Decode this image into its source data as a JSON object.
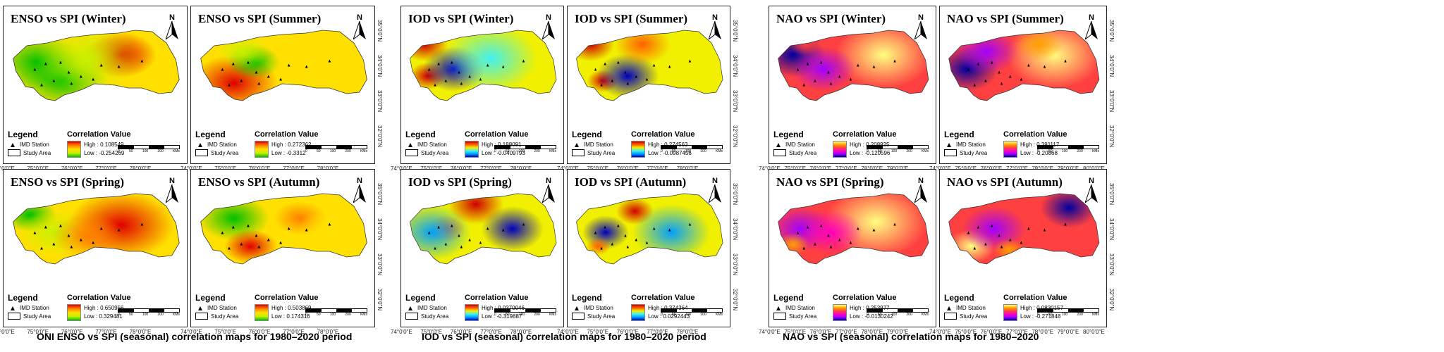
{
  "groups": [
    {
      "caption": "ONI ENSO vs SPI (seasonal) correlation maps for 1980–2020 period",
      "coords": {
        "x": [
          "74°0'0\"E",
          "75°0'0\"E",
          "76°0'0\"E",
          "77°0'0\"E",
          "78°0'0\"E",
          "79°0'0\"E"
        ],
        "y": [
          "35°0'0\"N",
          "34°0'0\"N",
          "33°0'0\"N",
          "32°0'0\"N"
        ]
      },
      "panels": [
        {
          "title": "ENSO vs SPI (Winter)",
          "high": "High : 0.108549",
          "low": "Low : -0.254269",
          "palette": "enso"
        },
        {
          "title": "ENSO vs SPI (Summer)",
          "high": "High : 0.272362",
          "low": "Low : -0.3312",
          "palette": "enso"
        },
        {
          "title": "ENSO vs SPI (Spring)",
          "high": "High : 0.650956",
          "low": "Low : 0.329481",
          "palette": "enso"
        },
        {
          "title": "ENSO vs SPI (Autumn)",
          "high": "High : 0.503869",
          "low": "Low : 0.174316",
          "palette": "enso"
        }
      ]
    },
    {
      "caption": "IOD vs SPI (seasonal) correlation maps for 1980–2020 period",
      "coords": {
        "x": [
          "74°0'0\"E",
          "75°0'0\"E",
          "76°0'0\"E",
          "77°0'0\"E",
          "78°0'0\"E",
          "79°0'0\"E"
        ],
        "y": [
          "35°0'0\"N",
          "34°0'0\"N",
          "33°0'0\"N",
          "32°0'0\"N"
        ]
      },
      "panels": [
        {
          "title": "IOD vs SPI (Winter)",
          "high": "High : 0.188091",
          "low": "Low : -0.0409793",
          "palette": "iod"
        },
        {
          "title": "IOD vs SPI (Summer)",
          "high": "High : 0.274563",
          "low": "Low : -0.0987456",
          "palette": "iod"
        },
        {
          "title": "IOD vs SPI (Spring)",
          "high": "High : 0.0370046",
          "low": "Low : -0.319887",
          "palette": "iod"
        },
        {
          "title": "IOD vs SPI (Autumn)",
          "high": "High : 0.374364",
          "low": "Low : 0.0292443",
          "palette": "iod"
        }
      ]
    },
    {
      "caption": "NAO vs SPI (seasonal) correlation maps for 1980–2020",
      "coords": {
        "x": [
          "74°0'0\"E",
          "75°0'0\"E",
          "76°0'0\"E",
          "77°0'0\"E",
          "78°0'0\"E",
          "79°0'0\"E",
          "80°0'0\"E"
        ],
        "y": [
          "35°0'0\"N",
          "34°0'0\"N",
          "33°0'0\"N",
          "32°0'0\"N"
        ]
      },
      "panels": [
        {
          "title": "NAO vs SPI (Winter)",
          "high": "High : 0.208925",
          "low": "Low : -0.120596",
          "palette": "nao"
        },
        {
          "title": "NAO vs SPI (Summer)",
          "high": "High : 0.391117",
          "low": "Low : -0.20868",
          "palette": "nao"
        },
        {
          "title": "NAO vs SPI (Spring)",
          "high": "High : 0.253977",
          "low": "Low : -0.0130242",
          "palette": "nao"
        },
        {
          "title": "NAO vs SPI (Autumn)",
          "high": "High : 0.0830157",
          "low": "Low : -0.271848",
          "palette": "nao"
        }
      ]
    }
  ],
  "legend": {
    "title": "Legend",
    "station": "IMD Station",
    "area": "Study Area",
    "corr_title": "Correlation Value",
    "north": "N",
    "scale_ticks": [
      "0",
      "50",
      "100",
      "200"
    ],
    "scale_unit": "KMs"
  },
  "palettes": {
    "enso": [
      "#00c000",
      "#c8f000",
      "#ffe000",
      "#ff8000",
      "#e00000"
    ],
    "iod": [
      "#0000c0",
      "#00a0ff",
      "#40f0f0",
      "#f0f000",
      "#ff6000",
      "#d00000"
    ],
    "nao": [
      "#0000a0",
      "#a000ff",
      "#ff00c0",
      "#ff4040",
      "#ffa000",
      "#ffff80"
    ]
  }
}
